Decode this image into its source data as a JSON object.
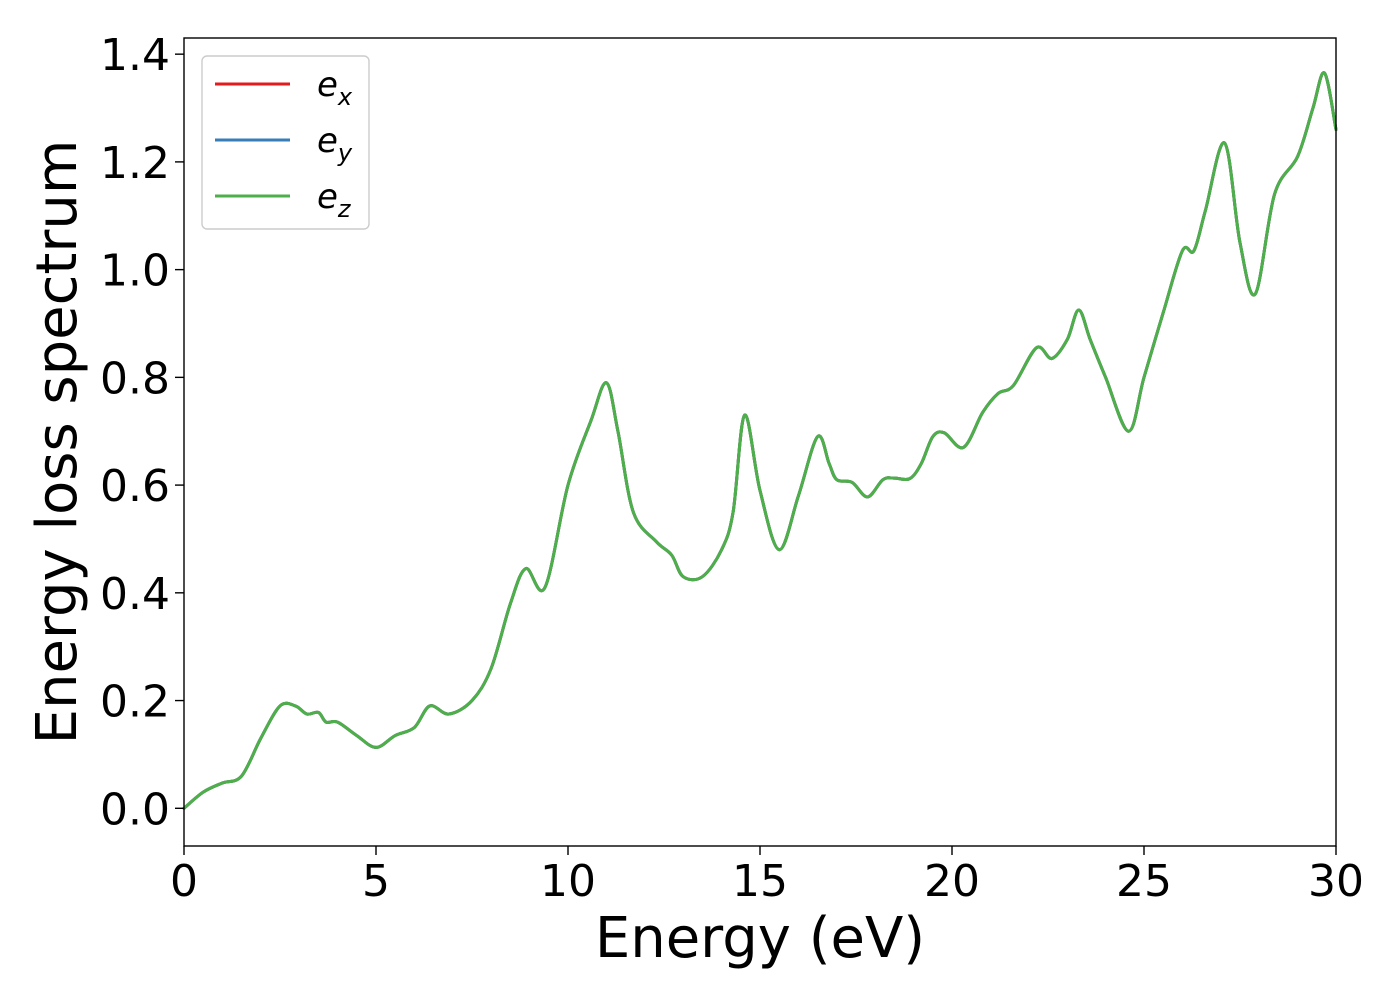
{
  "chart_data": {
    "type": "line",
    "xlabel": "Energy (eV)",
    "ylabel": "Energy loss spectrum",
    "xlim": [
      0,
      30
    ],
    "ylim": [
      -0.07,
      1.43
    ],
    "xticks": [
      0,
      5,
      10,
      15,
      20,
      25,
      30
    ],
    "xtick_labels": [
      "0",
      "5",
      "10",
      "15",
      "20",
      "25",
      "30"
    ],
    "yticks": [
      0.0,
      0.2,
      0.4,
      0.6,
      0.8,
      1.0,
      1.2,
      1.4
    ],
    "ytick_labels": [
      "0.0",
      "0.2",
      "0.4",
      "0.6",
      "0.8",
      "1.0",
      "1.2",
      "1.4"
    ],
    "grid": false,
    "legend_position": "top-left",
    "series": [
      {
        "name": "e",
        "subscript": "x",
        "color": "#e41a1c",
        "x": [
          0,
          0.5,
          1.0,
          1.5,
          2.0,
          2.5,
          2.9,
          3.2,
          3.5,
          3.7,
          4.0,
          4.5,
          5.0,
          5.5,
          6.0,
          6.4,
          6.9,
          7.5,
          8.0,
          8.5,
          8.9,
          9.4,
          10.0,
          10.6,
          11.0,
          11.3,
          11.7,
          12.3,
          12.7,
          13.0,
          13.5,
          14.0,
          14.3,
          14.6,
          15.0,
          15.5,
          16.0,
          16.5,
          16.8,
          17.0,
          17.4,
          17.8,
          18.2,
          18.5,
          18.9,
          19.2,
          19.5,
          19.8,
          20.3,
          20.8,
          21.2,
          21.6,
          22.2,
          22.6,
          23.0,
          23.3,
          23.6,
          24.0,
          24.6,
          25.0,
          25.5,
          26.0,
          26.3,
          26.6,
          27.1,
          27.5,
          27.9,
          28.4,
          29.0,
          29.4,
          29.7,
          30.0
        ],
        "y": [
          0.0,
          0.03,
          0.047,
          0.06,
          0.13,
          0.19,
          0.19,
          0.175,
          0.178,
          0.16,
          0.16,
          0.135,
          0.113,
          0.135,
          0.15,
          0.19,
          0.175,
          0.2,
          0.26,
          0.38,
          0.445,
          0.41,
          0.6,
          0.72,
          0.79,
          0.7,
          0.55,
          0.495,
          0.47,
          0.43,
          0.43,
          0.48,
          0.55,
          0.73,
          0.59,
          0.48,
          0.58,
          0.69,
          0.64,
          0.61,
          0.605,
          0.578,
          0.61,
          0.613,
          0.612,
          0.64,
          0.69,
          0.697,
          0.67,
          0.735,
          0.77,
          0.785,
          0.855,
          0.835,
          0.87,
          0.925,
          0.87,
          0.8,
          0.7,
          0.8,
          0.92,
          1.035,
          1.035,
          1.11,
          1.235,
          1.05,
          0.955,
          1.14,
          1.21,
          1.3,
          1.365,
          1.26
        ]
      },
      {
        "name": "e",
        "subscript": "y",
        "color": "#377eb8",
        "x": [
          0,
          0.5,
          1.0,
          1.5,
          2.0,
          2.5,
          2.9,
          3.2,
          3.5,
          3.7,
          4.0,
          4.5,
          5.0,
          5.5,
          6.0,
          6.4,
          6.9,
          7.5,
          8.0,
          8.5,
          8.9,
          9.4,
          10.0,
          10.6,
          11.0,
          11.3,
          11.7,
          12.3,
          12.7,
          13.0,
          13.5,
          14.0,
          14.3,
          14.6,
          15.0,
          15.5,
          16.0,
          16.5,
          16.8,
          17.0,
          17.4,
          17.8,
          18.2,
          18.5,
          18.9,
          19.2,
          19.5,
          19.8,
          20.3,
          20.8,
          21.2,
          21.6,
          22.2,
          22.6,
          23.0,
          23.3,
          23.6,
          24.0,
          24.6,
          25.0,
          25.5,
          26.0,
          26.3,
          26.6,
          27.1,
          27.5,
          27.9,
          28.4,
          29.0,
          29.4,
          29.7,
          30.0
        ],
        "y": [
          0.0,
          0.03,
          0.047,
          0.06,
          0.13,
          0.19,
          0.19,
          0.175,
          0.178,
          0.16,
          0.16,
          0.135,
          0.113,
          0.135,
          0.15,
          0.19,
          0.175,
          0.2,
          0.26,
          0.38,
          0.445,
          0.41,
          0.6,
          0.72,
          0.79,
          0.7,
          0.55,
          0.495,
          0.47,
          0.43,
          0.43,
          0.48,
          0.55,
          0.73,
          0.59,
          0.48,
          0.58,
          0.69,
          0.64,
          0.61,
          0.605,
          0.578,
          0.61,
          0.613,
          0.612,
          0.64,
          0.69,
          0.697,
          0.67,
          0.735,
          0.77,
          0.785,
          0.855,
          0.835,
          0.87,
          0.925,
          0.87,
          0.8,
          0.7,
          0.8,
          0.92,
          1.035,
          1.035,
          1.11,
          1.235,
          1.05,
          0.955,
          1.14,
          1.21,
          1.3,
          1.365,
          1.26
        ]
      },
      {
        "name": "e",
        "subscript": "z",
        "color": "#4daf4a",
        "x": [
          0,
          0.5,
          1.0,
          1.5,
          2.0,
          2.5,
          2.9,
          3.2,
          3.5,
          3.7,
          4.0,
          4.5,
          5.0,
          5.5,
          6.0,
          6.4,
          6.9,
          7.5,
          8.0,
          8.5,
          8.9,
          9.4,
          10.0,
          10.6,
          11.0,
          11.3,
          11.7,
          12.3,
          12.7,
          13.0,
          13.5,
          14.0,
          14.3,
          14.6,
          15.0,
          15.5,
          16.0,
          16.5,
          16.8,
          17.0,
          17.4,
          17.8,
          18.2,
          18.5,
          18.9,
          19.2,
          19.5,
          19.8,
          20.3,
          20.8,
          21.2,
          21.6,
          22.2,
          22.6,
          23.0,
          23.3,
          23.6,
          24.0,
          24.6,
          25.0,
          25.5,
          26.0,
          26.3,
          26.6,
          27.1,
          27.5,
          27.9,
          28.4,
          29.0,
          29.4,
          29.7,
          30.0
        ],
        "y": [
          0.0,
          0.03,
          0.047,
          0.06,
          0.13,
          0.19,
          0.19,
          0.175,
          0.178,
          0.16,
          0.16,
          0.135,
          0.113,
          0.135,
          0.15,
          0.19,
          0.175,
          0.2,
          0.26,
          0.38,
          0.445,
          0.41,
          0.6,
          0.72,
          0.79,
          0.7,
          0.55,
          0.495,
          0.47,
          0.43,
          0.43,
          0.48,
          0.55,
          0.73,
          0.59,
          0.48,
          0.58,
          0.69,
          0.64,
          0.61,
          0.605,
          0.578,
          0.61,
          0.613,
          0.612,
          0.64,
          0.69,
          0.697,
          0.67,
          0.735,
          0.77,
          0.785,
          0.855,
          0.835,
          0.87,
          0.925,
          0.87,
          0.8,
          0.7,
          0.8,
          0.92,
          1.035,
          1.035,
          1.11,
          1.235,
          1.05,
          0.955,
          1.14,
          1.21,
          1.3,
          1.365,
          1.26
        ]
      }
    ]
  }
}
